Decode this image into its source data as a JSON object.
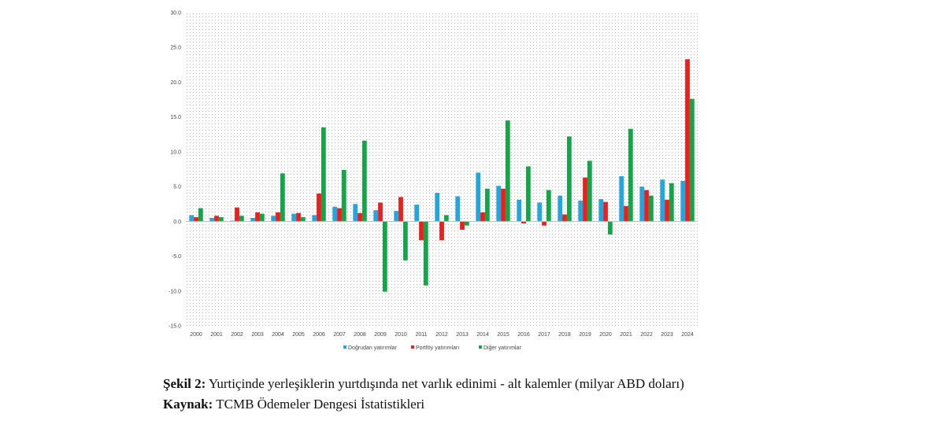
{
  "chart_data": {
    "type": "bar",
    "categories": [
      "2000",
      "2001",
      "2002",
      "2003",
      "2004",
      "2005",
      "2006",
      "2007",
      "2008",
      "2009",
      "2010",
      "2011",
      "2012",
      "2013",
      "2014",
      "2015",
      "2016",
      "2017",
      "2018",
      "2019",
      "2020",
      "2021",
      "2022",
      "2023",
      "2024"
    ],
    "series": [
      {
        "name": "Doğrudan yatırımlar",
        "color": "#1ea7e1",
        "values": [
          0.9,
          0.5,
          0.1,
          0.5,
          0.8,
          1.1,
          0.9,
          2.1,
          2.5,
          1.6,
          1.5,
          2.4,
          4.1,
          3.6,
          7.0,
          5.1,
          3.1,
          2.7,
          3.7,
          3.0,
          3.2,
          6.5,
          5.0,
          6.0,
          5.8
        ]
      },
      {
        "name": "Portföy yatırımları",
        "color": "#e8201f",
        "values": [
          0.6,
          0.8,
          2.0,
          1.3,
          1.3,
          1.2,
          4.0,
          1.9,
          1.2,
          2.7,
          3.5,
          -2.7,
          -2.7,
          -1.2,
          1.3,
          4.7,
          -0.3,
          -0.6,
          1.0,
          6.3,
          2.8,
          2.2,
          4.5,
          3.1,
          23.3
        ]
      },
      {
        "name": "Diğer yatırımlar",
        "color": "#16a34a",
        "values": [
          1.9,
          0.6,
          0.8,
          1.1,
          6.9,
          0.6,
          13.5,
          7.4,
          11.6,
          -10.1,
          -5.6,
          -9.2,
          0.9,
          -0.6,
          4.7,
          14.5,
          7.9,
          4.5,
          12.2,
          8.7,
          -1.9,
          13.3,
          3.7,
          5.5,
          17.6
        ]
      }
    ],
    "ylim": [
      -15,
      30
    ],
    "yticks": [
      "30.0",
      "25.0",
      "20.0",
      "15.0",
      "10.0",
      "5.0",
      "0.0",
      "-5.0",
      "-10.0",
      "-15.0"
    ],
    "ytick_values": [
      30,
      25,
      20,
      15,
      10,
      5,
      0,
      -5,
      -10,
      -15
    ],
    "legend_position": "bottom",
    "background": "dotted"
  },
  "caption": {
    "figure_label": "Şekil 2:",
    "figure_text": " Yurtiçinde yerleşiklerin yurtdışında net varlık edinimi - alt kalemler (milyar ABD doları)",
    "source_label": "Kaynak:",
    "source_text": " TCMB Ödemeler Dengesi İstatistikleri"
  }
}
